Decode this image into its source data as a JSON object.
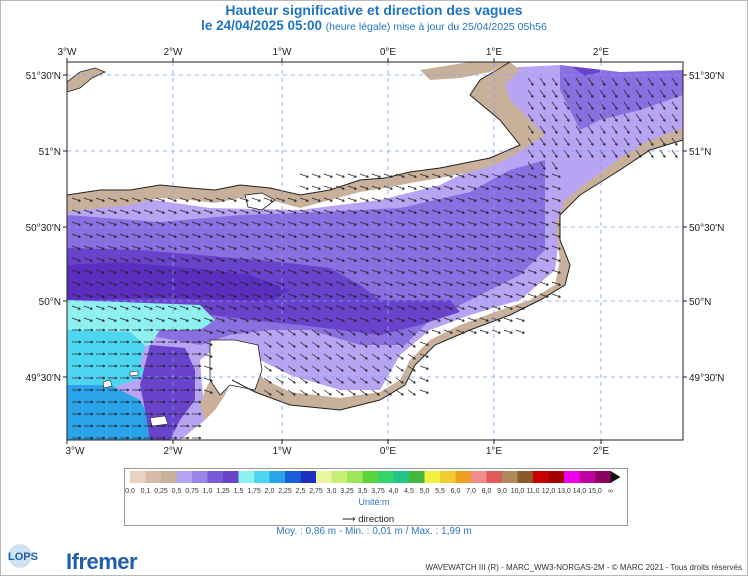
{
  "header": {
    "title": "Hauteur significative et direction des vagues",
    "date_main": "le 24/04/2025 05:00",
    "date_note": "(heure légale) mise à jour du 25/04/2025 05h56"
  },
  "map": {
    "lon_labels": [
      "3°W",
      "2°W",
      "1°W",
      "0°E",
      "1°E",
      "2°E"
    ],
    "lat_labels": [
      "51°30'N",
      "51°N",
      "50°30'N",
      "50°N",
      "49°30'N"
    ],
    "colors": {
      "land": "#c8b09a",
      "sea_light": "#b7a5f4",
      "sea_mid": "#8a6fe0",
      "sea_dark": "#6a43cc",
      "sea_deep": "#5a2fbf",
      "cyan": "#8ff0f0",
      "teal": "#4cd6f0",
      "blue": "#2aa3ea",
      "grid": "#7f9fff"
    }
  },
  "legend": {
    "labels": [
      "0,0",
      "0,1",
      "0,25",
      "0,5",
      "0,75",
      "1,0",
      "1,25",
      "1,5",
      "1,75",
      "2,0",
      "2,25",
      "2,5",
      "2,75",
      "3,0",
      "3,25",
      "3,5",
      "3,75",
      "4,0",
      "4,5",
      "5,0",
      "5,5",
      "6,0",
      "7,0",
      "8,0",
      "9,0",
      "10,0",
      "11,0",
      "12,0",
      "13,0",
      "14,0",
      "15,0",
      "∞"
    ],
    "colors": [
      "#e8d2c0",
      "#d6bca8",
      "#c8b09a",
      "#b7a5f4",
      "#9a83ea",
      "#7a5ad8",
      "#6a43cc",
      "#8ff0f0",
      "#4cd6f0",
      "#2aa3ea",
      "#1b5fd8",
      "#1c2fbf",
      "#e9f5a0",
      "#c6ef7a",
      "#9fe55a",
      "#5cd43e",
      "#33d46a",
      "#22c48a",
      "#44b83a",
      "#f0f040",
      "#f0cc30",
      "#f0a020",
      "#f08c8c",
      "#e05a5a",
      "#b0885a",
      "#8c5a2a",
      "#c80000",
      "#a00000",
      "#f000f0",
      "#c000a0",
      "#8c0060"
    ],
    "unit": "Unité:m",
    "direction_label": "direction"
  },
  "stats": {
    "text": "Moy. : 0,86 m   -   Min. : 0,01 m / Max. : 1,99 m"
  },
  "footer": {
    "copyright": "WAVEWATCH III (R) - MARC_WW3-NORGAS-2M - © MARC 2021 - Tous droits réservés",
    "logo_left": "LOPS",
    "logo_right": "Ifremer"
  }
}
